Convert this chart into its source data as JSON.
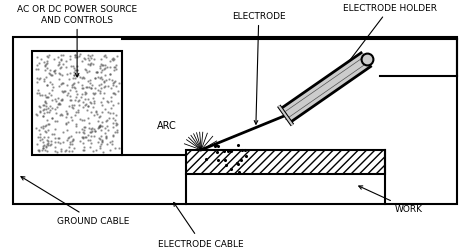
{
  "bg_color": "#ffffff",
  "line_color": "#000000",
  "figsize": [
    4.68,
    2.53
  ],
  "dpi": 100,
  "labels": {
    "power_source": "AC OR DC POWER SOURCE\nAND CONTROLS",
    "electrode": "ELECTRODE",
    "electrode_holder": "ELECTRODE HOLDER",
    "arc": "ARC",
    "ground_cable": "GROUND CABLE",
    "electrode_cable": "ELECTRODE CABLE",
    "work": "WORK"
  },
  "font_size": 6.5
}
